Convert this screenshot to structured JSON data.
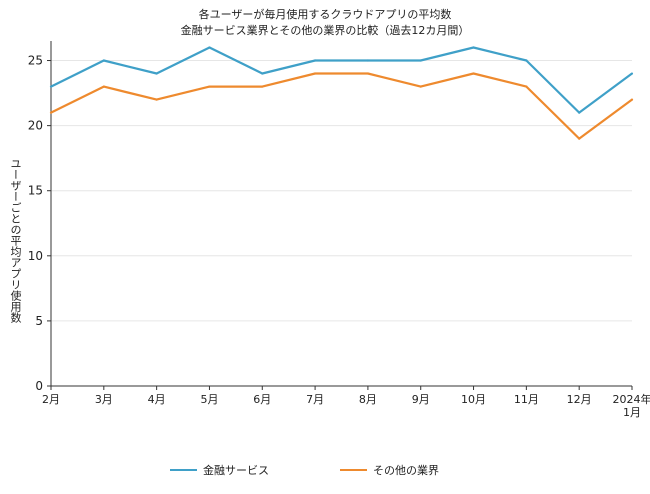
{
  "chart_data": {
    "type": "line",
    "title": "各ユーザーが毎月使用するクラウドアプリの平均数",
    "subtitle": "金融サービス業界とその他の業界の比較（過去12カ月間）",
    "ylabel": "ユーザーごとの平均アプリ使用数",
    "xlabel": "",
    "categories": [
      "2月",
      "3月",
      "4月",
      "5月",
      "6月",
      "7月",
      "8月",
      "9月",
      "10月",
      "11月",
      "12月",
      "2024年\n1月"
    ],
    "ylim": [
      0,
      26.5
    ],
    "yticks": [
      0,
      5,
      10,
      15,
      20,
      25
    ],
    "grid": true,
    "legend_position": "bottom",
    "series": [
      {
        "name": "金融サービス",
        "color": "#3fa0c8",
        "values": [
          23,
          25,
          24,
          26,
          24,
          25,
          25,
          25,
          26,
          25,
          21,
          24
        ]
      },
      {
        "name": "その他の業界",
        "color": "#ee8a2e",
        "values": [
          21,
          23,
          22,
          23,
          23,
          24,
          24,
          23,
          24,
          23,
          19,
          22
        ]
      }
    ]
  }
}
